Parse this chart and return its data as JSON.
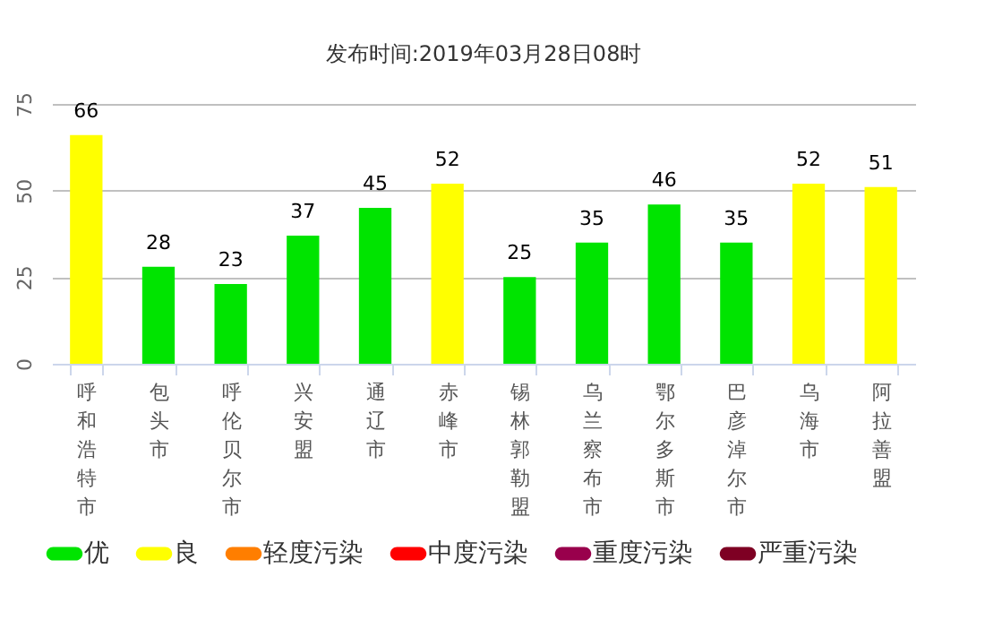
{
  "chart_data": {
    "type": "bar",
    "title": "发布时间:2019年03月28日08时",
    "data_labels": true,
    "grid": "y",
    "legend": "bottom",
    "categories": [
      "呼和浩特市",
      "包头市",
      "呼伦贝尔市",
      "兴安盟",
      "通辽市",
      "赤峰市",
      "锡林郭勒盟",
      "乌兰察布市",
      "鄂尔多斯市",
      "巴彦淖尔市",
      "乌海市",
      "阿拉善盟"
    ],
    "ylim": [
      0,
      75
    ],
    "yticks": [
      0,
      25,
      50,
      75
    ],
    "series": [
      {
        "name": "优",
        "color": "#00e400",
        "values": [
          null,
          28,
          23,
          37,
          45,
          null,
          25,
          35,
          46,
          35,
          null,
          null
        ]
      },
      {
        "name": "良",
        "color": "#ffff00",
        "values": [
          66,
          null,
          null,
          null,
          null,
          52,
          null,
          null,
          null,
          null,
          52,
          51
        ]
      },
      {
        "name": "轻度污染",
        "color": "#ff7e00",
        "values": [
          null,
          null,
          null,
          null,
          null,
          null,
          null,
          null,
          null,
          null,
          null,
          null
        ]
      },
      {
        "name": "中度污染",
        "color": "#ff0000",
        "values": [
          null,
          null,
          null,
          null,
          null,
          null,
          null,
          null,
          null,
          null,
          null,
          null
        ]
      },
      {
        "name": "重度污染",
        "color": "#99004c",
        "values": [
          null,
          null,
          null,
          null,
          null,
          null,
          null,
          null,
          null,
          null,
          null,
          null
        ]
      },
      {
        "name": "严重污染",
        "color": "#7e0023",
        "values": [
          null,
          null,
          null,
          null,
          null,
          null,
          null,
          null,
          null,
          null,
          null,
          null
        ]
      }
    ]
  }
}
